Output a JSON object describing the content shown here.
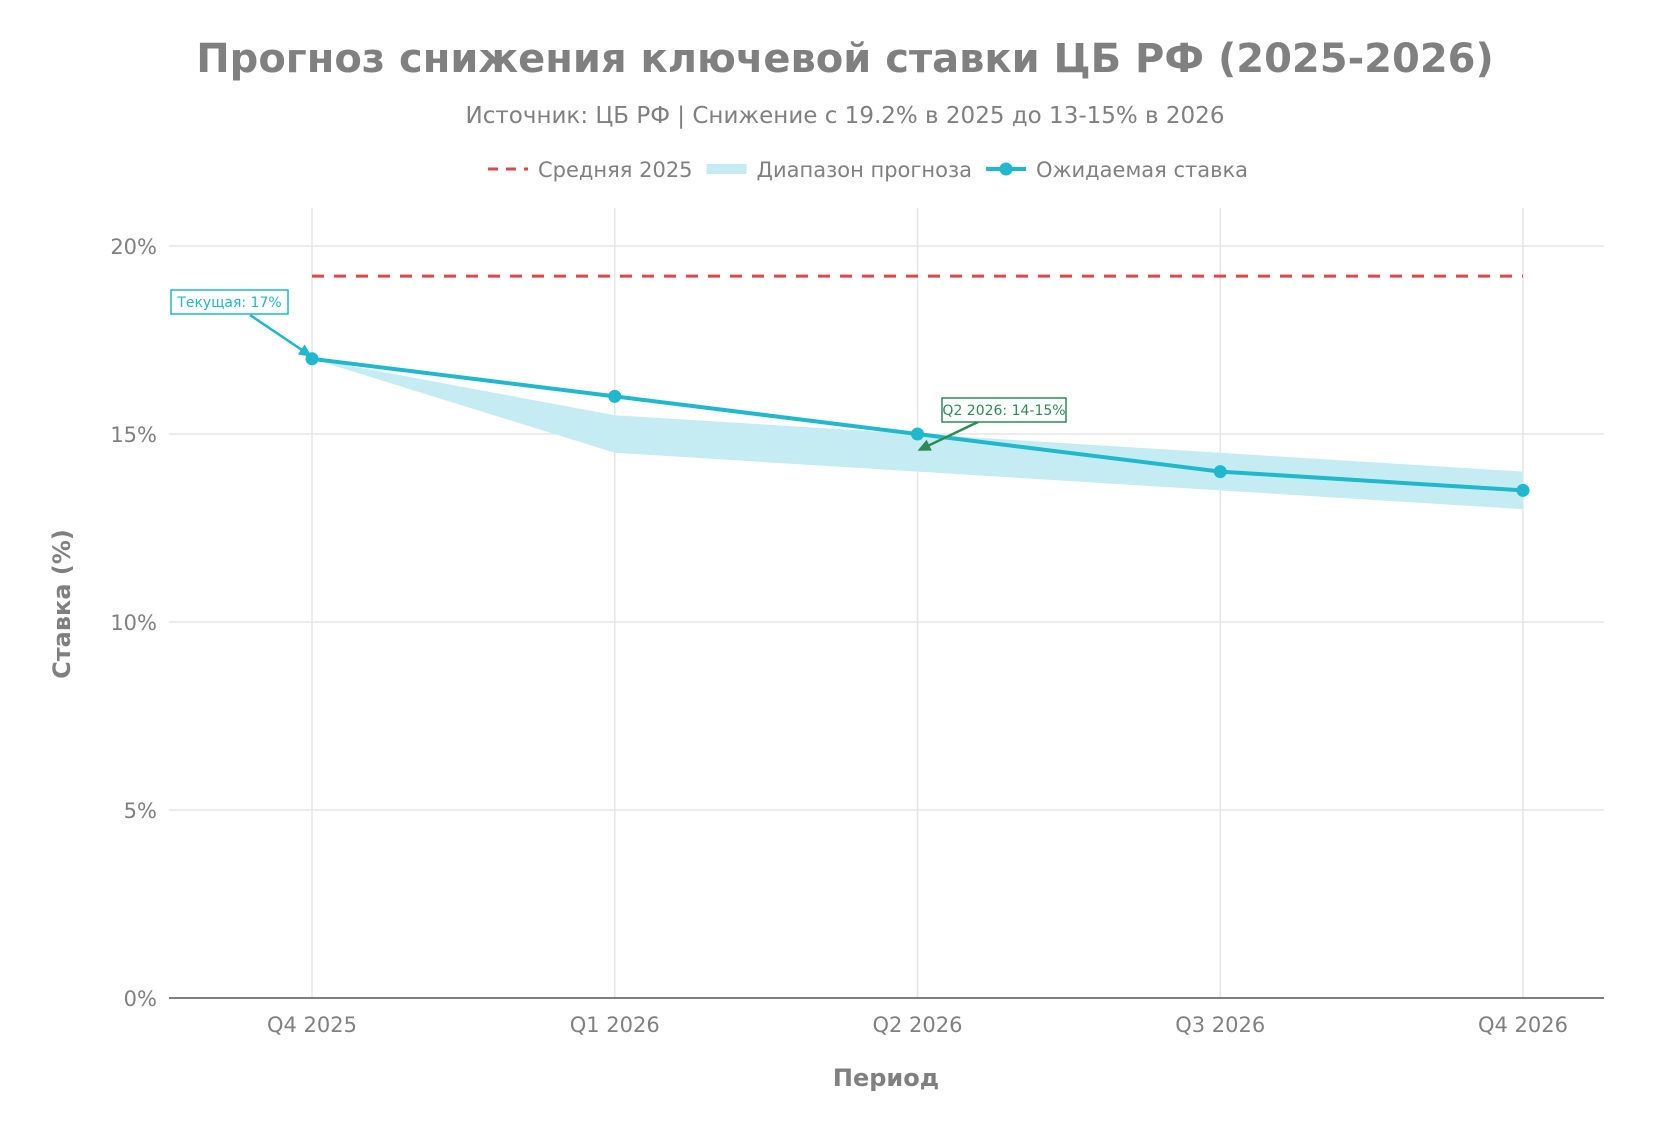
{
  "chart_data": {
    "type": "line",
    "title": "Прогноз снижения ключевой ставки ЦБ РФ (2025-2026)",
    "subtitle": "Источник: ЦБ РФ | Снижение с 19.2% в 2025 до 13-15% в 2026",
    "xlabel": "Период",
    "ylabel": "Ставка (%)",
    "categories": [
      "Q4 2025",
      "Q1 2026",
      "Q2 2026",
      "Q3 2026",
      "Q4 2026"
    ],
    "ylim": [
      0,
      21
    ],
    "yticks": [
      0,
      5,
      10,
      15,
      20
    ],
    "ytick_labels": [
      "0%",
      "5%",
      "10%",
      "15%",
      "20%"
    ],
    "grid": true,
    "legend_placement": "top-center",
    "series": [
      {
        "name": "Средняя 2025",
        "kind": "hline",
        "value": 19.2,
        "color": "#e04848",
        "dash": true
      },
      {
        "name": "Диапазон прогноза",
        "kind": "band",
        "lower": [
          17,
          14.5,
          14,
          13.5,
          13
        ],
        "upper": [
          17,
          15.5,
          15,
          14.5,
          14
        ],
        "color": "#c5ecf2"
      },
      {
        "name": "Ожидаемая ставка",
        "kind": "line",
        "values": [
          17,
          16,
          15,
          14,
          13.5
        ],
        "color": "#1fb8cd"
      }
    ],
    "annotations": [
      {
        "text": "Текущая: 17%",
        "category": "Q4 2025",
        "value": 17,
        "color": "#1fb8cd"
      },
      {
        "text": "Q2 2026: 14-15%",
        "category": "Q2 2026",
        "value": 14.5,
        "color": "#2e8b57"
      }
    ]
  }
}
